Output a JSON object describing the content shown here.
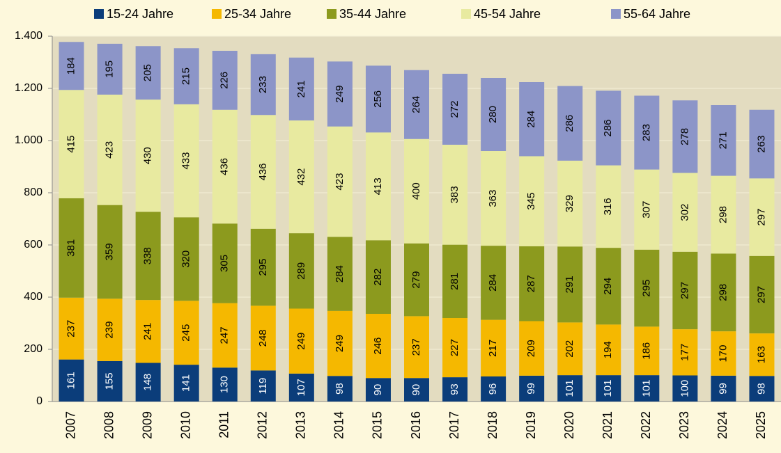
{
  "chart_data": {
    "type": "stacked-bar",
    "categories": [
      "2007",
      "2008",
      "2009",
      "2010",
      "2011",
      "2012",
      "2013",
      "2014",
      "2015",
      "2016",
      "2017",
      "2018",
      "2019",
      "2020",
      "2021",
      "2022",
      "2023",
      "2024",
      "2025"
    ],
    "series": [
      {
        "name": "15-24 Jahre",
        "color": "#0b3d7a",
        "values": [
          161,
          155,
          148,
          141,
          130,
          119,
          107,
          98,
          90,
          90,
          93,
          96,
          99,
          101,
          101,
          101,
          100,
          99,
          98
        ]
      },
      {
        "name": "25-34 Jahre",
        "color": "#f5b800",
        "values": [
          237,
          239,
          241,
          245,
          247,
          248,
          249,
          249,
          246,
          237,
          227,
          217,
          209,
          202,
          194,
          186,
          177,
          170,
          163
        ]
      },
      {
        "name": "35-44 Jahre",
        "color": "#8c9a1e",
        "values": [
          381,
          359,
          338,
          320,
          305,
          295,
          289,
          284,
          282,
          279,
          281,
          284,
          287,
          291,
          294,
          295,
          297,
          298,
          297
        ]
      },
      {
        "name": "45-54 Jahre",
        "color": "#e8eaa0",
        "values": [
          415,
          423,
          430,
          433,
          436,
          436,
          432,
          423,
          413,
          400,
          383,
          363,
          345,
          329,
          316,
          307,
          302,
          298,
          297
        ]
      },
      {
        "name": "55-64 Jahre",
        "color": "#8c95c8",
        "values": [
          184,
          195,
          205,
          215,
          226,
          233,
          241,
          249,
          256,
          264,
          272,
          280,
          284,
          286,
          286,
          283,
          278,
          271,
          263
        ]
      }
    ],
    "ylim": [
      0,
      1400
    ],
    "yticks": [
      0,
      200,
      400,
      600,
      800,
      {
        "value": 1000,
        "label": "1.000"
      },
      {
        "value": 1200,
        "label": "1.200"
      },
      {
        "value": 1400,
        "label": "1.400"
      }
    ],
    "grid": true
  }
}
